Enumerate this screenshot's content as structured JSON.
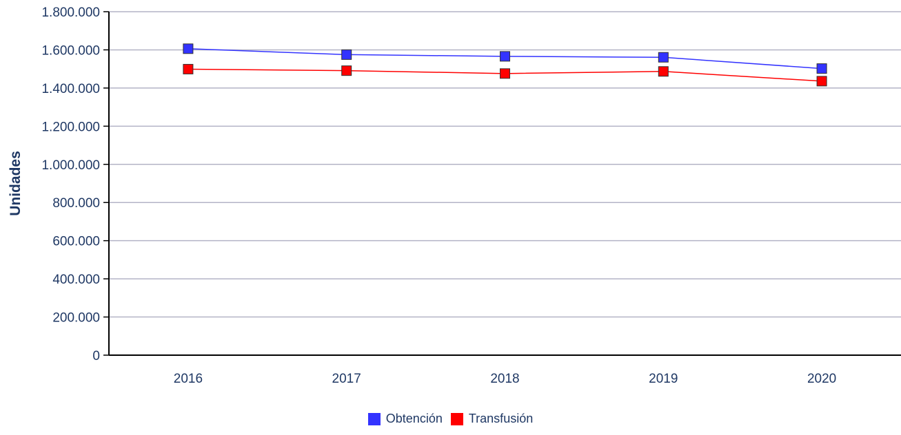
{
  "chart_data": {
    "type": "line",
    "title": "",
    "xlabel": "",
    "ylabel": "Unidades",
    "categories": [
      "2016",
      "2017",
      "2018",
      "2019",
      "2020"
    ],
    "ylim": [
      0,
      1800000
    ],
    "y_ticks": [
      {
        "value": 0,
        "label": "0"
      },
      {
        "value": 200000,
        "label": "200.000"
      },
      {
        "value": 400000,
        "label": "400.000"
      },
      {
        "value": 600000,
        "label": "600.000"
      },
      {
        "value": 800000,
        "label": "800.000"
      },
      {
        "value": 1000000,
        "label": "1.000.000"
      },
      {
        "value": 1200000,
        "label": "1.200.000"
      },
      {
        "value": 1400000,
        "label": "1.400.000"
      },
      {
        "value": 1600000,
        "label": "1.600.000"
      },
      {
        "value": 1800000,
        "label": "1.800.000"
      }
    ],
    "grid": true,
    "legend_position": "bottom-center",
    "series": [
      {
        "name": "Obtención",
        "color": "#3333ff",
        "values": [
          1606000,
          1575000,
          1566000,
          1561000,
          1502000
        ]
      },
      {
        "name": "Transfusión",
        "color": "#ff0000",
        "values": [
          1499000,
          1491000,
          1476000,
          1487000,
          1436000
        ]
      }
    ],
    "colors": {
      "text": "#1f3864",
      "grid": "#b3b3c6",
      "axis": "#000000"
    }
  }
}
